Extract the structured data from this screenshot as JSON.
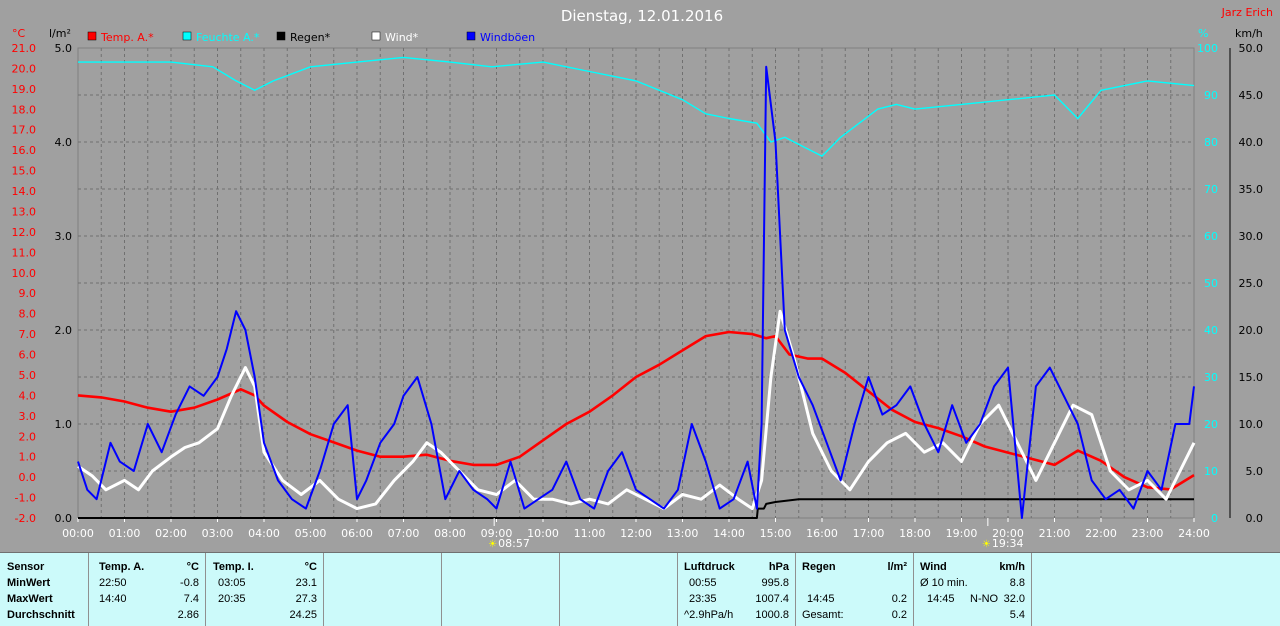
{
  "chart_data": {
    "type": "line",
    "title": "Dienstag, 12.01.2016",
    "author": "Jarz Erich",
    "x_ticks": [
      "00:00",
      "01:00",
      "02:00",
      "03:00",
      "04:00",
      "05:00",
      "06:00",
      "07:00",
      "08:00",
      "09:00",
      "10:00",
      "11:00",
      "12:00",
      "13:00",
      "14:00",
      "15:00",
      "16:00",
      "17:00",
      "18:00",
      "19:00",
      "20:00",
      "21:00",
      "22:00",
      "23:00",
      "24:00"
    ],
    "axes": {
      "temp": {
        "unit": "°C",
        "min": -2,
        "max": 21,
        "ticks": [
          "21.0",
          "20.0",
          "19.0",
          "18.0",
          "17.0",
          "16.0",
          "15.0",
          "14.0",
          "13.0",
          "12.0",
          "11.0",
          "10.0",
          "9.0",
          "8.0",
          "7.0",
          "6.0",
          "5.0",
          "4.0",
          "3.0",
          "2.0",
          "1.0",
          "0.0",
          "-1.0",
          "-2.0"
        ]
      },
      "rain": {
        "unit": "l/m²",
        "min": 0,
        "max": 5,
        "ticks": [
          "5.0",
          "4.0",
          "3.0",
          "2.0",
          "1.0",
          "0.0"
        ]
      },
      "humidity": {
        "unit": "%",
        "min": 0,
        "max": 100,
        "ticks": [
          "100",
          "90",
          "80",
          "70",
          "60",
          "50",
          "40",
          "30",
          "20",
          "10",
          "0"
        ]
      },
      "wind": {
        "unit": "km/h",
        "min": 0,
        "max": 50,
        "ticks": [
          "50.0",
          "45.0",
          "40.0",
          "35.0",
          "30.0",
          "25.0",
          "20.0",
          "15.0",
          "10.0",
          "5.0",
          "0.0"
        ]
      }
    },
    "legend": [
      {
        "name": "Temp. A.*",
        "color": "#ff0000"
      },
      {
        "name": "Feuchte A.*",
        "color": "#00ffff"
      },
      {
        "name": "Regen*",
        "color": "#000000"
      },
      {
        "name": "Wind*",
        "color": "#ffffff"
      },
      {
        "name": "Windböen",
        "color": "#0000ff"
      }
    ],
    "sun": {
      "sunrise": "08:57",
      "sunset": "19:34"
    },
    "series": [
      {
        "name": "Temp. A.*",
        "axis": "temp",
        "color": "#ff0000",
        "x": [
          0,
          0.5,
          1,
          1.5,
          2,
          2.5,
          3,
          3.5,
          3.8,
          4,
          4.5,
          5,
          5.5,
          6,
          6.5,
          7,
          7.5,
          8,
          8.5,
          9,
          9.5,
          10,
          10.5,
          11,
          11.5,
          12,
          12.5,
          13,
          13.5,
          14,
          14.5,
          14.8,
          15,
          15.3,
          15.7,
          16,
          16.5,
          17,
          17.5,
          18,
          18.5,
          19,
          19.5,
          20,
          20.5,
          21,
          21.5,
          22,
          22.5,
          23,
          23.5,
          24
        ],
        "y": [
          4.0,
          3.9,
          3.7,
          3.4,
          3.2,
          3.4,
          3.8,
          4.3,
          4.0,
          3.5,
          2.7,
          2.1,
          1.7,
          1.3,
          1.0,
          1.0,
          1.1,
          0.8,
          0.6,
          0.6,
          1.0,
          1.8,
          2.6,
          3.2,
          4.0,
          4.9,
          5.5,
          6.2,
          6.9,
          7.1,
          7.0,
          6.8,
          6.9,
          6.0,
          5.8,
          5.8,
          5.1,
          4.2,
          3.3,
          2.7,
          2.4,
          2.0,
          1.5,
          1.2,
          0.9,
          0.6,
          1.3,
          0.8,
          0.0,
          -0.5,
          -0.6,
          0.1
        ]
      },
      {
        "name": "Feuchte A.*",
        "axis": "humidity",
        "color": "#00ffff",
        "x": [
          0,
          1,
          2,
          2.9,
          3.4,
          3.8,
          4.2,
          5,
          6,
          7,
          8,
          8.9,
          10,
          10.5,
          11,
          12,
          13,
          13.5,
          14,
          14.6,
          14.9,
          15.2,
          15.6,
          16,
          16.4,
          16.8,
          17.2,
          17.6,
          18,
          19,
          20,
          21,
          21.5,
          22,
          23,
          24
        ],
        "y": [
          97,
          97,
          97,
          96,
          93,
          91,
          93,
          96,
          97,
          98,
          97,
          96,
          97,
          96,
          95,
          93,
          89,
          86,
          85,
          84,
          80,
          81,
          79,
          77,
          81,
          84,
          87,
          88,
          87,
          88,
          89,
          90,
          85,
          91,
          93,
          92
        ]
      },
      {
        "name": "Regen*",
        "axis": "rain",
        "color": "#000000",
        "x": [
          0,
          14.6,
          14.62,
          14.75,
          14.8,
          15,
          15.5,
          16,
          24
        ],
        "y": [
          0,
          0,
          0.1,
          0.1,
          0.15,
          0.17,
          0.2,
          0.2,
          0.2
        ]
      },
      {
        "name": "Wind*",
        "axis": "wind",
        "color": "#ffffff",
        "x": [
          0,
          0.3,
          0.6,
          1,
          1.3,
          1.6,
          2,
          2.3,
          2.6,
          3,
          3.3,
          3.6,
          3.8,
          4,
          4.4,
          4.8,
          5.2,
          5.6,
          6,
          6.4,
          6.8,
          7.2,
          7.5,
          7.8,
          8.2,
          8.6,
          9,
          9.4,
          9.8,
          10.2,
          10.6,
          11,
          11.4,
          11.8,
          12.2,
          12.6,
          13,
          13.4,
          13.8,
          14.2,
          14.5,
          14.7,
          14.9,
          15.1,
          15.4,
          15.8,
          16.2,
          16.6,
          17,
          17.4,
          17.8,
          18.2,
          18.6,
          19,
          19.4,
          19.8,
          20.2,
          20.6,
          21,
          21.4,
          21.8,
          22.2,
          22.6,
          23,
          23.4,
          23.7,
          24
        ],
        "y": [
          5.5,
          4.5,
          3,
          4,
          3,
          5,
          6.5,
          7.5,
          8,
          9.5,
          13,
          16,
          14,
          7,
          4,
          2.5,
          4,
          2,
          1,
          1.5,
          4,
          6,
          8,
          7,
          5,
          3,
          2.5,
          4,
          2,
          2,
          1.5,
          2,
          1.5,
          3,
          2,
          1,
          2.5,
          2,
          3.5,
          2,
          1,
          4,
          15,
          22,
          17,
          9,
          5,
          3,
          6,
          8,
          9,
          7,
          8,
          6,
          10,
          12,
          8,
          4,
          8,
          12,
          11,
          5,
          3,
          4,
          2,
          5,
          8
        ]
      },
      {
        "name": "Windböen",
        "axis": "wind",
        "color": "#0000ff",
        "x": [
          0,
          0.2,
          0.4,
          0.7,
          0.9,
          1.2,
          1.5,
          1.8,
          2.1,
          2.4,
          2.7,
          3,
          3.2,
          3.4,
          3.6,
          3.8,
          4,
          4.3,
          4.6,
          4.9,
          5.2,
          5.5,
          5.8,
          6,
          6.2,
          6.5,
          6.8,
          7,
          7.3,
          7.6,
          7.9,
          8.2,
          8.5,
          8.8,
          9,
          9.3,
          9.6,
          9.9,
          10.2,
          10.5,
          10.8,
          11.1,
          11.4,
          11.7,
          12,
          12.3,
          12.6,
          12.9,
          13.2,
          13.5,
          13.8,
          14.1,
          14.4,
          14.6,
          14.7,
          14.8,
          15,
          15.2,
          15.5,
          15.8,
          16.1,
          16.4,
          16.7,
          17,
          17.3,
          17.6,
          17.9,
          18.2,
          18.5,
          18.8,
          19.1,
          19.4,
          19.7,
          20,
          20.3,
          20.6,
          20.9,
          21.2,
          21.5,
          21.8,
          22.1,
          22.4,
          22.7,
          23,
          23.3,
          23.6,
          23.9,
          24
        ],
        "y": [
          6,
          3,
          2,
          8,
          6,
          5,
          10,
          7,
          11,
          14,
          13,
          15,
          18,
          22,
          20,
          15,
          8,
          4,
          2,
          1,
          5,
          10,
          12,
          2,
          4,
          8,
          10,
          13,
          15,
          10,
          2,
          5,
          3,
          2,
          1,
          6,
          1,
          2,
          3,
          6,
          2,
          1,
          5,
          7,
          3,
          2,
          1,
          3,
          10,
          6,
          1,
          2,
          6,
          1,
          10,
          48,
          40,
          20,
          15,
          12,
          8,
          4,
          10,
          15,
          11,
          12,
          14,
          10,
          7,
          12,
          8,
          10,
          14,
          16,
          0,
          14,
          16,
          13,
          10,
          4,
          2,
          3,
          1,
          5,
          3,
          10,
          10,
          14
        ]
      }
    ]
  },
  "table": {
    "sensor_header": "Sensor",
    "rows": [
      "MinWert",
      "MaxWert",
      "Durchschnitt"
    ],
    "temp_a": {
      "label": "Temp. A.",
      "unit": "°C",
      "min_time": "22:50",
      "min_val": "-0.8",
      "max_time": "14:40",
      "max_val": "7.4",
      "avg": "2.86"
    },
    "temp_i": {
      "label": "Temp. I.",
      "unit": "°C",
      "min_time": "03:05",
      "min_val": "23.1",
      "max_time": "20:35",
      "max_val": "27.3",
      "avg": "24.25"
    },
    "luftdruck": {
      "label": "Luftdruck",
      "unit": "hPa",
      "min_time": "00:55",
      "min_val": "995.8",
      "max_time": "23:35",
      "max_val": "1007.4",
      "trend": "^2.9hPa/h",
      "avg": "1000.8"
    },
    "regen": {
      "label": "Regen",
      "unit": "l/m²",
      "max_time": "14:45",
      "max_val": "0.2",
      "total_label": "Gesamt:",
      "total": "0.2"
    },
    "wind": {
      "label": "Wind",
      "unit": "km/h",
      "avg10_label": "Ø 10 min.",
      "avg10": "8.8",
      "max_time": "14:45",
      "max_dir": "N-NO",
      "max_val": "32.0",
      "avg": "5.4"
    }
  }
}
